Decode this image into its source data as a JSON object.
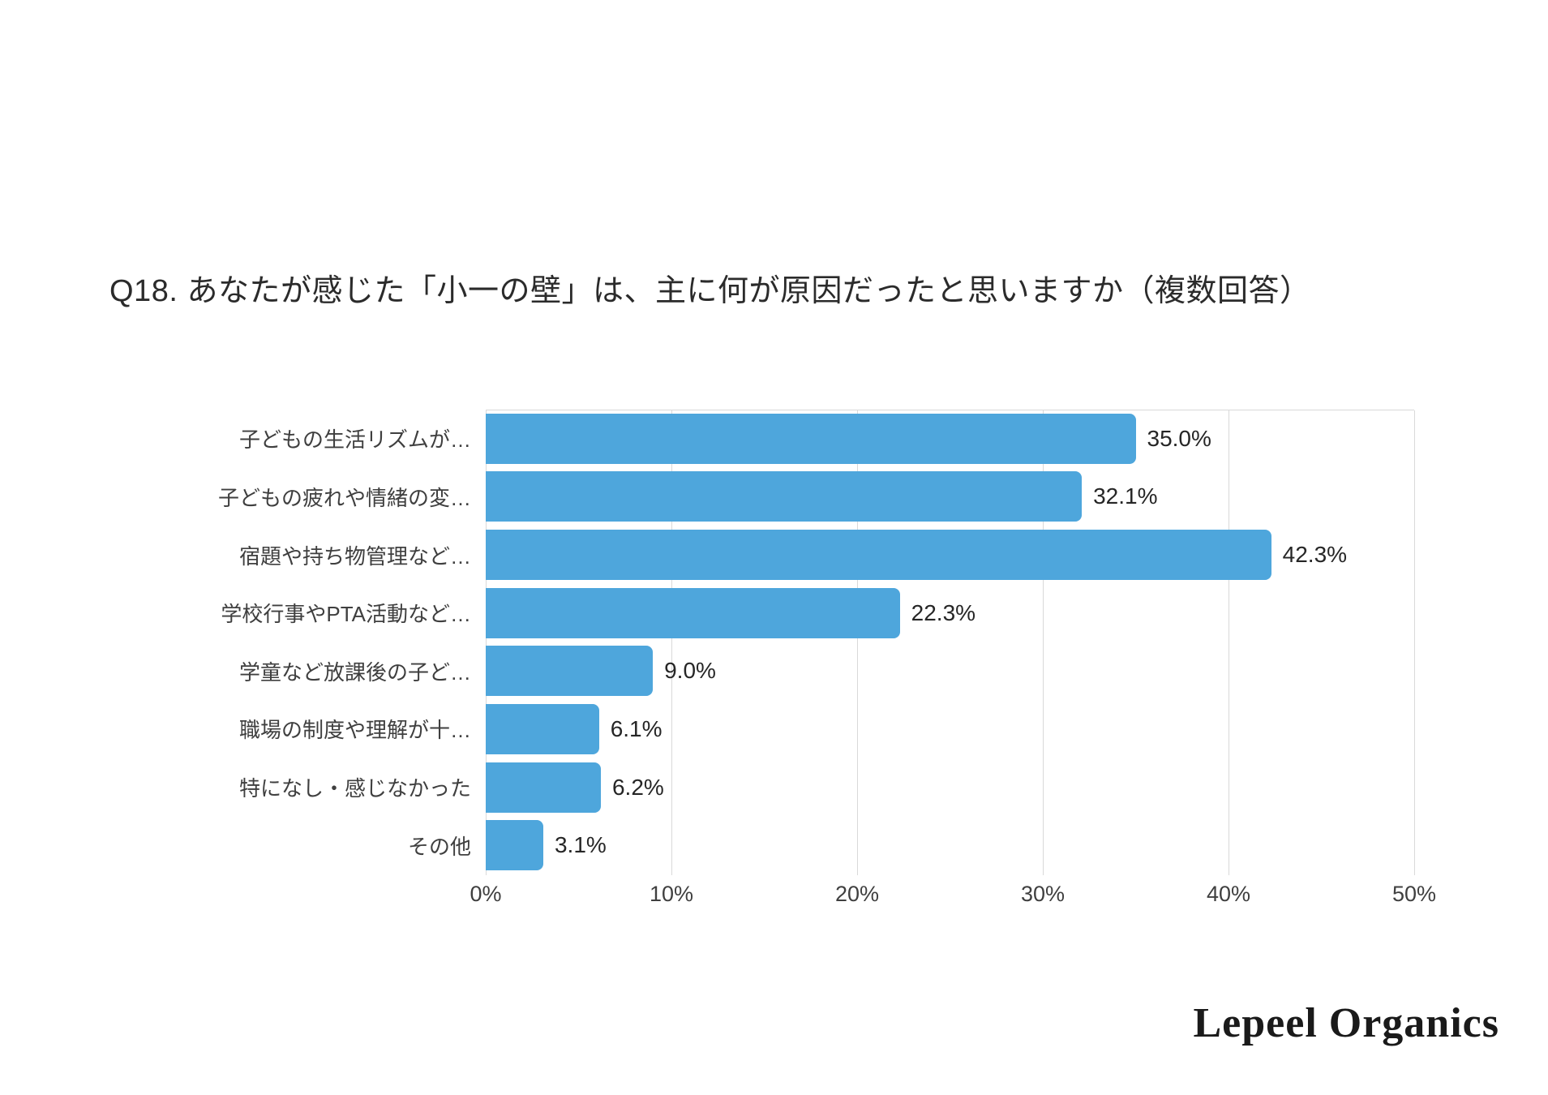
{
  "title": "Q18. あなたが感じた「小一の壁」は、主に何が原因だったと思いますか（複数回答）",
  "footer": {
    "brand": "Lepeel Organics"
  },
  "chart_data": {
    "type": "bar",
    "orientation": "horizontal",
    "title": "Q18. あなたが感じた「小一の壁」は、主に何が原因だったと思いますか（複数回答）",
    "categories": [
      "子どもの生活リズムが…",
      "子どもの疲れや情緒の変…",
      "宿題や持ち物管理など…",
      "学校行事やPTA活動など…",
      "学童など放課後の子ど…",
      "職場の制度や理解が十…",
      "特になし・感じなかった",
      "その他"
    ],
    "values": [
      35.0,
      32.1,
      42.3,
      22.3,
      9.0,
      6.1,
      6.2,
      3.1
    ],
    "value_labels": [
      "35.0%",
      "32.1%",
      "42.3%",
      "22.3%",
      "9.0%",
      "6.1%",
      "6.2%",
      "3.1%"
    ],
    "xlabel": "",
    "ylabel": "",
    "xlim": [
      0,
      50
    ],
    "x_ticks": [
      "0%",
      "10%",
      "20%",
      "30%",
      "40%",
      "50%"
    ],
    "x_tick_values": [
      0,
      10,
      20,
      30,
      40,
      50
    ],
    "grid": true,
    "legend": false,
    "bar_color": "#4ea6dc",
    "gridline_color": "#d9d9d9"
  }
}
